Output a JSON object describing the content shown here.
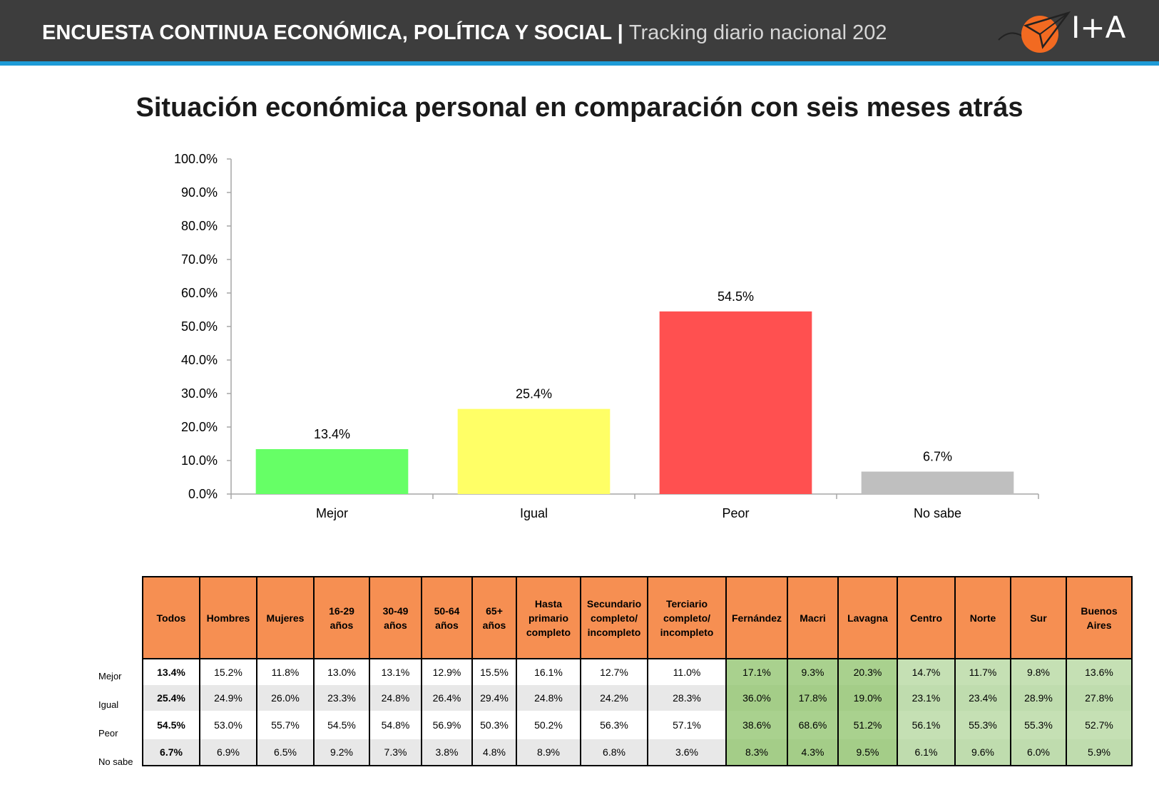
{
  "header": {
    "title_bold": "ENCUESTA CONTINUA ECONÓMICA, POLÍTICA Y SOCIAL | ",
    "title_thin": "Tracking diario nacional 202",
    "logo_text": "I+A",
    "bg_color": "#3d3d3d",
    "strip_color": "#1e9bd7"
  },
  "chart_data": {
    "type": "bar",
    "title": "Situación económica personal en comparación con seis meses atrás",
    "categories": [
      "Mejor",
      "Igual",
      "Peor",
      "No sabe"
    ],
    "values": [
      13.4,
      25.4,
      54.5,
      6.7
    ],
    "value_labels": [
      "13.4%",
      "25.4%",
      "54.5%",
      "6.7%"
    ],
    "colors": [
      "#66ff66",
      "#ffff66",
      "#ff5050",
      "#bfbfbf"
    ],
    "ylim": [
      0,
      100
    ],
    "yticks": [
      "0.0%",
      "10.0%",
      "20.0%",
      "30.0%",
      "40.0%",
      "50.0%",
      "60.0%",
      "70.0%",
      "80.0%",
      "90.0%",
      "100.0%"
    ],
    "xlabel": "",
    "ylabel": "",
    "grid": false
  },
  "table": {
    "headers": [
      "Todos",
      "Hombres",
      "Mujeres",
      "16-29 años",
      "30-49 años",
      "50-64 años",
      "65+ años",
      "Hasta primario completo",
      "Secundario completo/ incompleto",
      "Terciario completo/ incompleto",
      "Fernández",
      "Macri",
      "Lavagna",
      "Centro",
      "Norte",
      "Sur",
      "Buenos Aires"
    ],
    "row_labels": [
      "Mejor",
      "Igual",
      "Peor",
      "No sabe"
    ],
    "rows": [
      [
        "13.4%",
        "15.2%",
        "11.8%",
        "13.0%",
        "13.1%",
        "12.9%",
        "15.5%",
        "16.1%",
        "12.7%",
        "11.0%",
        "17.1%",
        "9.3%",
        "20.3%",
        "14.7%",
        "11.7%",
        "9.8%",
        "13.6%"
      ],
      [
        "25.4%",
        "24.9%",
        "26.0%",
        "23.3%",
        "24.8%",
        "26.4%",
        "29.4%",
        "24.8%",
        "24.2%",
        "28.3%",
        "36.0%",
        "17.8%",
        "19.0%",
        "23.1%",
        "23.4%",
        "28.9%",
        "27.8%"
      ],
      [
        "54.5%",
        "53.0%",
        "55.7%",
        "54.5%",
        "54.8%",
        "56.9%",
        "50.3%",
        "50.2%",
        "56.3%",
        "57.1%",
        "38.6%",
        "68.6%",
        "51.2%",
        "56.1%",
        "55.3%",
        "55.3%",
        "52.7%"
      ],
      [
        "6.7%",
        "6.9%",
        "6.5%",
        "9.2%",
        "7.3%",
        "3.8%",
        "4.8%",
        "8.9%",
        "6.8%",
        "3.6%",
        "8.3%",
        "4.3%",
        "9.5%",
        "6.1%",
        "9.6%",
        "6.0%",
        "5.9%"
      ]
    ],
    "header_color": "#f68f52",
    "political_color": "#a9d18e",
    "region_color": "#c5e0b4"
  }
}
